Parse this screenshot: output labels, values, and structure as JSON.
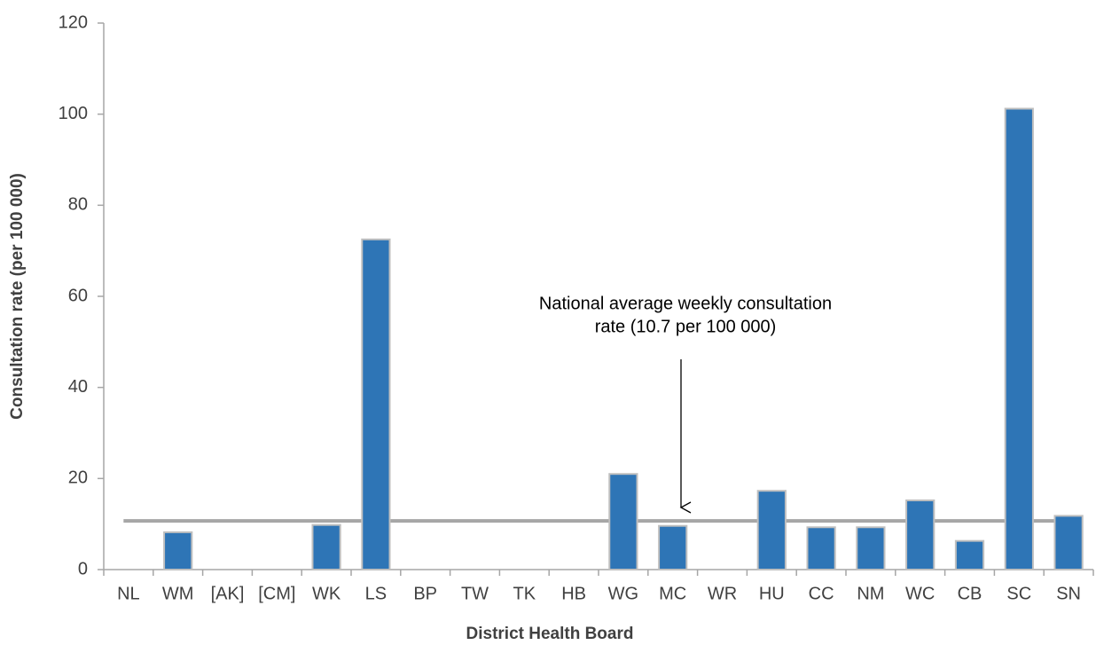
{
  "chart_data": {
    "type": "bar",
    "x_label": "District Health Board",
    "y_label": "Consultation rate (per 100 000)",
    "categories": [
      "NL",
      "WM",
      "[AK]",
      "[CM]",
      "WK",
      "LS",
      "BP",
      "TW",
      "TK",
      "HB",
      "WG",
      "MC",
      "WR",
      "HU",
      "CC",
      "NM",
      "WC",
      "CB",
      "SC",
      "SN"
    ],
    "values": [
      0,
      8.2,
      0,
      0,
      9.8,
      72.5,
      0,
      0,
      0,
      0,
      21,
      9.6,
      0,
      17.3,
      9.3,
      9.3,
      15.2,
      6.3,
      101.2,
      11.8
    ],
    "color": "#2e75b6",
    "ylim": [
      0,
      120
    ],
    "yticks": [
      0,
      20,
      40,
      60,
      80,
      100,
      120
    ],
    "grid": false,
    "reference_line": {
      "value": 10.7,
      "color": "#a6a6a6"
    },
    "annotation": [
      "National average weekly consultation",
      "rate (10.7 per 100 000)"
    ]
  }
}
